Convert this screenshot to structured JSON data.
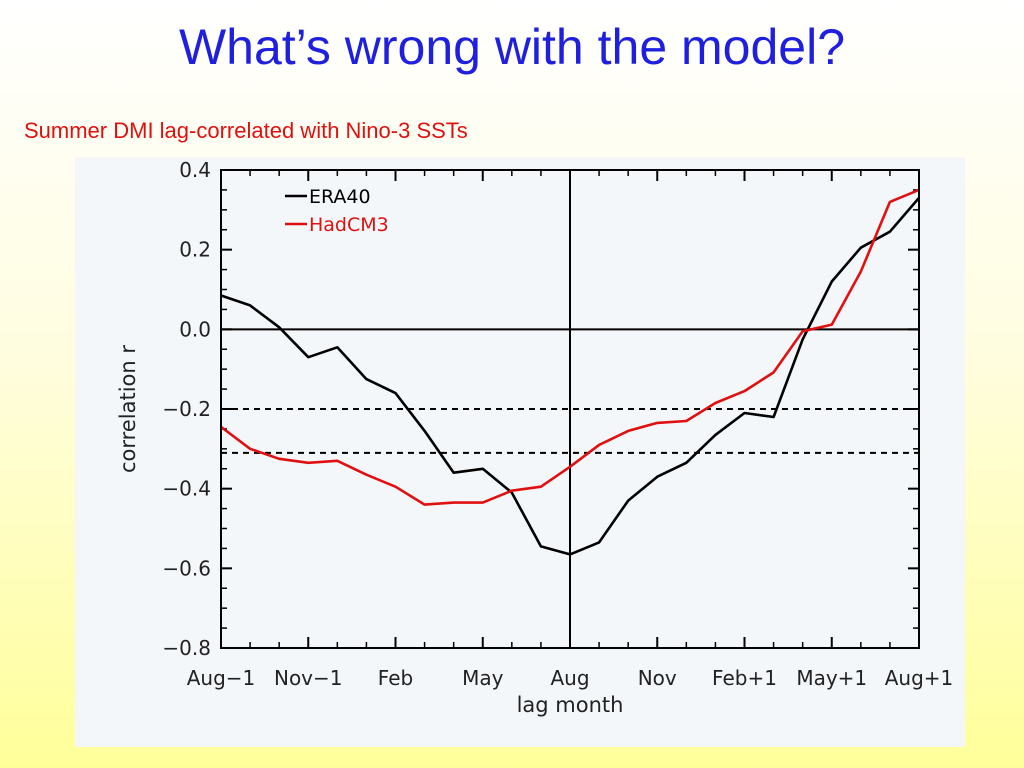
{
  "slide": {
    "title": "What’s wrong with the model?",
    "subtitle": "Summer DMI lag-correlated with Nino-3 SSTs"
  },
  "chart_data": {
    "type": "line",
    "title": "",
    "xlabel": "lag month",
    "ylabel": "correlation r",
    "xlim": [
      0,
      24
    ],
    "ylim": [
      -0.8,
      0.4
    ],
    "x_ticks": [
      0,
      3,
      6,
      9,
      12,
      15,
      18,
      21,
      24
    ],
    "x_tick_labels": [
      "Aug−1",
      "Nov−1",
      "Feb",
      "May",
      "Aug",
      "Nov",
      "Feb+1",
      "May+1",
      "Aug+1"
    ],
    "y_ticks": [
      0.4,
      0.2,
      0.0,
      -0.2,
      -0.4,
      -0.6,
      -0.8
    ],
    "y_tick_labels": [
      "0.4",
      "0.2",
      "0.0",
      "−0.2",
      "−0.4",
      "−0.6",
      "−0.8"
    ],
    "reference_lines": {
      "horizontal_solid": [
        0.0
      ],
      "horizontal_dashed": [
        -0.2,
        -0.31
      ],
      "vertical_solid": [
        12
      ]
    },
    "legend_position": "top-left",
    "grid": false,
    "series": [
      {
        "name": "ERA40",
        "color": "#000000",
        "x": [
          0,
          1,
          2,
          3,
          4,
          5,
          6,
          7,
          8,
          9,
          10,
          11,
          12,
          13,
          14,
          15,
          16,
          17,
          18,
          19,
          20,
          21,
          22,
          23,
          24
        ],
        "values": [
          0.085,
          0.06,
          0.005,
          -0.07,
          -0.045,
          -0.125,
          -0.16,
          -0.255,
          -0.36,
          -0.35,
          -0.41,
          -0.545,
          -0.565,
          -0.535,
          -0.43,
          -0.37,
          -0.335,
          -0.265,
          -0.21,
          -0.22,
          -0.025,
          0.12,
          0.205,
          0.245,
          0.33
        ]
      },
      {
        "name": "HadCM3",
        "color": "#e01010",
        "x": [
          0,
          1,
          2,
          3,
          4,
          5,
          6,
          7,
          8,
          9,
          10,
          11,
          12,
          13,
          14,
          15,
          16,
          17,
          18,
          19,
          20,
          21,
          22,
          23,
          24
        ],
        "values": [
          -0.245,
          -0.3,
          -0.325,
          -0.335,
          -0.33,
          -0.365,
          -0.395,
          -0.44,
          -0.435,
          -0.435,
          -0.405,
          -0.395,
          -0.345,
          -0.29,
          -0.255,
          -0.235,
          -0.23,
          -0.185,
          -0.155,
          -0.108,
          -0.005,
          0.012,
          0.145,
          0.32,
          0.35
        ]
      }
    ]
  }
}
